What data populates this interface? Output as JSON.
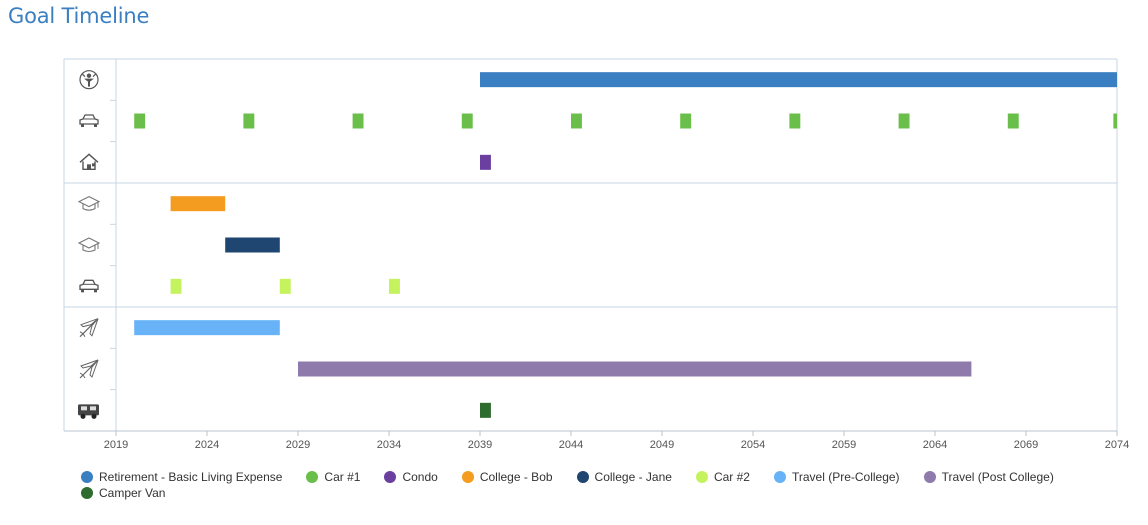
{
  "title": "Goal Timeline",
  "chart_data": {
    "type": "timeline",
    "title": "Goal Timeline",
    "xlim": [
      2019,
      2074
    ],
    "xticks": [
      2019,
      2024,
      2029,
      2034,
      2039,
      2044,
      2049,
      2054,
      2059,
      2064,
      2069,
      2074
    ],
    "grid": false,
    "legend_position": "bottom-left",
    "rows": [
      {
        "icon": "retirement-icon",
        "group": 1
      },
      {
        "icon": "car-icon",
        "group": 1
      },
      {
        "icon": "house-icon",
        "group": 1
      },
      {
        "icon": "graduation-cap-icon",
        "group": 2
      },
      {
        "icon": "graduation-cap-icon",
        "group": 2
      },
      {
        "icon": "car-icon",
        "group": 2
      },
      {
        "icon": "airplane-icon",
        "group": 3
      },
      {
        "icon": "airplane-icon",
        "group": 3
      },
      {
        "icon": "camper-van-icon",
        "group": 3
      }
    ],
    "series": [
      {
        "name": "Retirement - Basic Living Expense",
        "color": "#3a7fc1",
        "row": 0,
        "segments": [
          [
            2039,
            2074
          ]
        ]
      },
      {
        "name": "Car #1",
        "color": "#6abf4b",
        "row": 1,
        "segments": [
          [
            2020,
            2020.6
          ],
          [
            2026,
            2026.6
          ],
          [
            2032,
            2032.6
          ],
          [
            2038,
            2038.6
          ],
          [
            2044,
            2044.6
          ],
          [
            2050,
            2050.6
          ],
          [
            2056,
            2056.6
          ],
          [
            2062,
            2062.6
          ],
          [
            2068,
            2068.6
          ],
          [
            2073.8,
            2074.3
          ]
        ]
      },
      {
        "name": "Condo",
        "color": "#6b3fa0",
        "row": 2,
        "segments": [
          [
            2039,
            2039.6
          ]
        ]
      },
      {
        "name": "College - Bob",
        "color": "#f39c1f",
        "row": 3,
        "segments": [
          [
            2022,
            2025
          ]
        ]
      },
      {
        "name": "College - Jane",
        "color": "#1f4670",
        "row": 4,
        "segments": [
          [
            2025,
            2028
          ]
        ]
      },
      {
        "name": "Car #2",
        "color": "#c4f35e",
        "row": 5,
        "segments": [
          [
            2022,
            2022.6
          ],
          [
            2028,
            2028.6
          ],
          [
            2034,
            2034.6
          ]
        ]
      },
      {
        "name": "Travel (Pre-College)",
        "color": "#68b3f7",
        "row": 6,
        "segments": [
          [
            2020,
            2028
          ]
        ]
      },
      {
        "name": "Travel (Post College)",
        "color": "#8e7aab",
        "row": 7,
        "segments": [
          [
            2029,
            2066
          ]
        ]
      },
      {
        "name": "Camper Van",
        "color": "#2e6b2e",
        "row": 8,
        "segments": [
          [
            2039,
            2039.6
          ]
        ]
      }
    ]
  }
}
